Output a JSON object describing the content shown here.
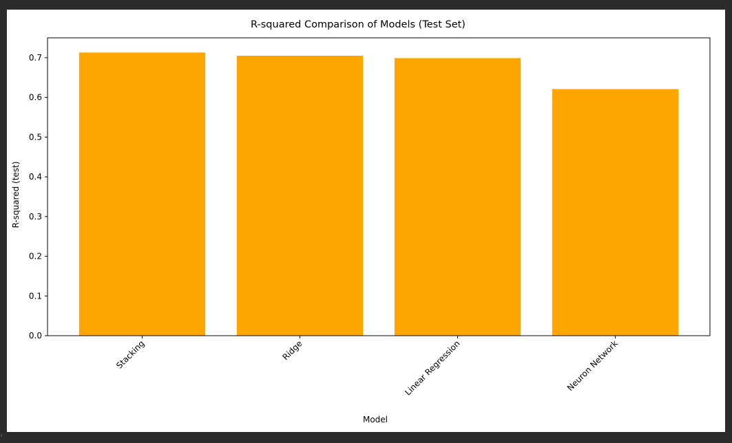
{
  "chart_data": {
    "type": "bar",
    "title": "R-squared Comparison of Models (Test Set)",
    "xlabel": "Model",
    "ylabel": "R-squared (test)",
    "categories": [
      "Stacking",
      "Ridge",
      "Linear Regression",
      "Neuron Network"
    ],
    "values": [
      0.713,
      0.705,
      0.699,
      0.621
    ],
    "ylim": [
      0,
      0.75
    ],
    "yticks": [
      0.0,
      0.1,
      0.2,
      0.3,
      0.4,
      0.5,
      0.6,
      0.7
    ],
    "ytick_labels": [
      "0.0",
      "0.1",
      "0.2",
      "0.3",
      "0.4",
      "0.5",
      "0.6",
      "0.7"
    ],
    "grid": false,
    "legend": false,
    "bar_color": "#ffa500",
    "xtick_rotation_deg": 45
  },
  "theme": {
    "outer_background": "#2b2b2b",
    "plot_background": "#ffffff",
    "axis_color": "#000000"
  }
}
